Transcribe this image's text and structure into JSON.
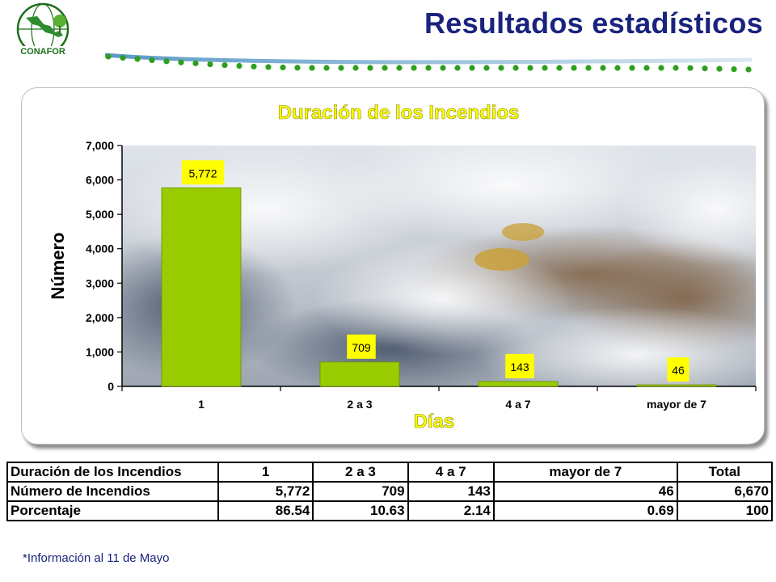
{
  "slide": {
    "title": "Resultados estadísticos"
  },
  "logo": {
    "text": "CONAFOR"
  },
  "chart_data": {
    "type": "bar",
    "title": "Duración de los Incendios",
    "xlabel": "Días",
    "ylabel": "Número",
    "categories": [
      "1",
      "2 a 3",
      "4 a 7",
      "mayor de 7"
    ],
    "values": [
      5772,
      709,
      143,
      46
    ],
    "value_labels": [
      "5,772",
      "709",
      "143",
      "46"
    ],
    "ylim": [
      0,
      7000
    ],
    "yticks": [
      0,
      1000,
      2000,
      3000,
      4000,
      5000,
      6000,
      7000
    ],
    "ytick_labels": [
      "0",
      "1,000",
      "2,000",
      "3,000",
      "4,000",
      "5,000",
      "6,000",
      "7,000"
    ],
    "grid": false,
    "legend": "none",
    "colors": {
      "bar": "#99cc00",
      "bar_edge": "#6a8f00",
      "data_label_bg": "#ffff00",
      "title": "#ffff00"
    }
  },
  "table": {
    "header": [
      "Duración de los Incendios",
      "1",
      "2 a 3",
      "4 a 7",
      "mayor de 7",
      "Total"
    ],
    "rows": [
      [
        "Número de Incendios",
        "5,772",
        "709",
        "143",
        "46",
        "6,670"
      ],
      [
        "Porcentaje",
        "86.54",
        "10.63",
        "2.14",
        "0.69",
        "100"
      ]
    ]
  },
  "footnote": "*Información al 11 de Mayo",
  "colors": {
    "title": "#1a237e",
    "dots": "#2e9e1e",
    "line": "#4a8fc0"
  }
}
